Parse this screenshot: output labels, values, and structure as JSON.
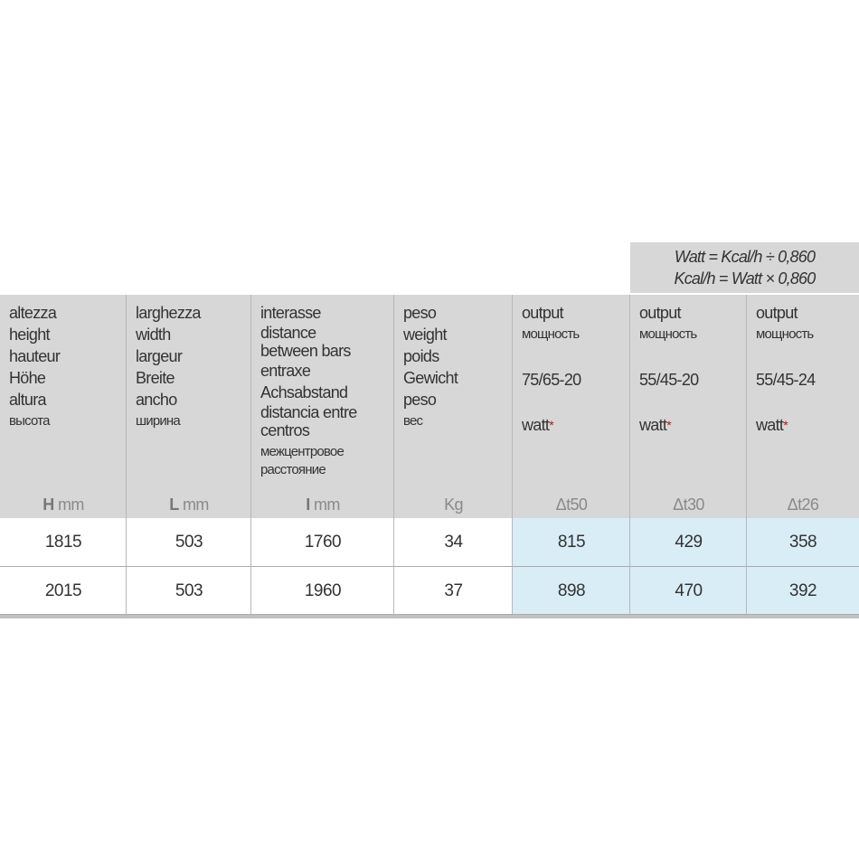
{
  "formula": {
    "line1": "Watt = Kcal/h ÷ 0,860",
    "line2": "Kcal/h = Watt × 0,860"
  },
  "columns": [
    {
      "labels": [
        "altezza",
        "height",
        "hauteur",
        "Höhe",
        "altura"
      ],
      "russian": "высота",
      "unit_symbol": "H",
      "unit": "mm"
    },
    {
      "labels": [
        "larghezza",
        "width",
        "largeur",
        "Breite",
        "ancho"
      ],
      "russian": "ширина",
      "unit_symbol": "L",
      "unit": "mm"
    },
    {
      "labels": [
        "interasse",
        "distance",
        "between bars",
        "entraxe",
        "Achsabstand",
        "distancia entre",
        "centros"
      ],
      "russian": [
        "межцентровое",
        "расстояние"
      ],
      "unit_symbol": "I",
      "unit": "mm"
    },
    {
      "labels": [
        "peso",
        "weight",
        "poids",
        "Gewicht",
        "peso"
      ],
      "russian": "вес",
      "unit": "Kg"
    },
    {
      "label": "output",
      "russian": "мощность",
      "condition": "75/65-20",
      "watt": "watt",
      "star": "*",
      "unit": "Δt50"
    },
    {
      "label": "output",
      "russian": "мощность",
      "condition": "55/45-20",
      "watt": "watt",
      "star": "*",
      "unit": "Δt30"
    },
    {
      "label": "output",
      "russian": "мощность",
      "condition": "55/45-24",
      "watt": "watt",
      "star": "*",
      "unit": "Δt26"
    }
  ],
  "rows": [
    [
      "1815",
      "503",
      "1760",
      "34",
      "815",
      "429",
      "358"
    ],
    [
      "2015",
      "503",
      "1960",
      "37",
      "898",
      "470",
      "392"
    ]
  ],
  "colors": {
    "header_bg": "#d7d7d7",
    "output_bg": "#d9edf7",
    "star": "#b3121b"
  }
}
